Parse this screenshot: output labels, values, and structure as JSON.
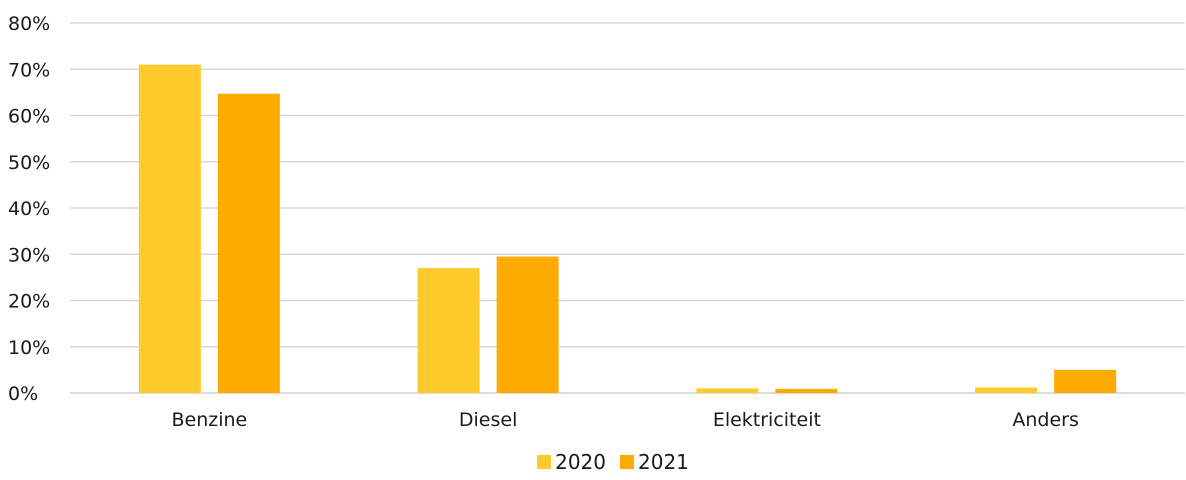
{
  "chart_data": {
    "type": "bar",
    "categories": [
      "Benzine",
      "Diesel",
      "Elektriciteit",
      "Anders"
    ],
    "series": [
      {
        "name": "2020",
        "color": "#FFCA2C",
        "values": [
          71,
          27,
          1,
          1.2
        ]
      },
      {
        "name": "2021",
        "color": "#FFAA00",
        "values": [
          64.7,
          29.5,
          0.9,
          5
        ]
      }
    ],
    "ylim": [
      0,
      80
    ],
    "yticks": [
      0,
      10,
      20,
      30,
      40,
      50,
      60,
      70,
      80
    ],
    "ytick_format": "percent",
    "grid": true,
    "legend_position": "bottom-center",
    "title": "",
    "xlabel": "",
    "ylabel": ""
  }
}
